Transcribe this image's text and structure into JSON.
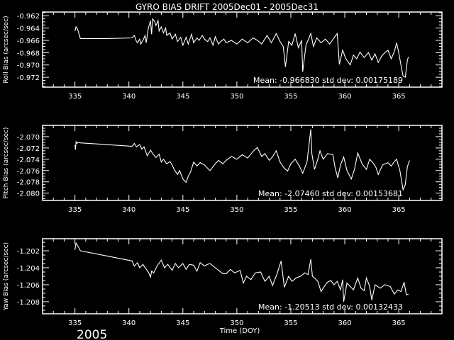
{
  "title": "GYRO BIAS DRIFT 2005Dec01 - 2005Dec31",
  "xlabel": "Time (DOY)",
  "year_label": "2005",
  "colors": {
    "background": "#000000",
    "foreground": "#ffffff"
  },
  "chart_data": [
    {
      "type": "line",
      "ylabel": "Roll Bias (arcsec/sec)",
      "stats": "Mean: -0.966830 std dev: 0.00175189",
      "xlim": [
        332,
        369
      ],
      "ylim": [
        -0.9736,
        -0.9614
      ],
      "xticks": [
        335,
        340,
        345,
        350,
        355,
        360,
        365
      ],
      "yticks": [
        -0.962,
        -0.964,
        -0.966,
        -0.968,
        -0.97,
        -0.972
      ],
      "ytick_labels": [
        "-0.962",
        "-0.964",
        "-0.966",
        "-0.968",
        "-0.970",
        "-0.972"
      ],
      "x": [
        335.0,
        335.1,
        335.2,
        335.3,
        335.5,
        338.0,
        340.3,
        340.5,
        340.7,
        340.8,
        341.0,
        341.1,
        341.3,
        341.5,
        341.6,
        341.8,
        342.0,
        342.1,
        342.2,
        342.4,
        342.5,
        342.7,
        342.8,
        343.0,
        343.2,
        343.4,
        343.5,
        343.8,
        344.0,
        344.3,
        344.5,
        344.8,
        345.0,
        345.3,
        345.5,
        345.8,
        346.0,
        346.3,
        346.5,
        346.8,
        347.0,
        347.3,
        347.5,
        347.8,
        348.0,
        348.3,
        348.5,
        348.8,
        349.0,
        349.5,
        350.0,
        350.5,
        351.0,
        351.5,
        351.9,
        352.3,
        352.8,
        353.2,
        353.65,
        354.0,
        354.3,
        354.5,
        354.8,
        355.1,
        355.4,
        355.7,
        356.0,
        356.1,
        356.4,
        356.85,
        357.1,
        357.4,
        357.8,
        358.2,
        358.6,
        359.0,
        359.3,
        359.5,
        359.8,
        360.1,
        360.5,
        360.8,
        361.1,
        361.4,
        361.8,
        362.2,
        362.5,
        362.8,
        363.1,
        363.4,
        363.7,
        364.0,
        364.3,
        364.6,
        364.8,
        365.0,
        365.2,
        365.4,
        365.6,
        365.8,
        365.9
      ],
      "y": [
        -0.9645,
        -0.9638,
        -0.964,
        -0.9645,
        -0.9657,
        -0.9657,
        -0.9656,
        -0.9652,
        -0.9662,
        -0.9664,
        -0.9658,
        -0.9666,
        -0.966,
        -0.9652,
        -0.9664,
        -0.964,
        -0.9628,
        -0.965,
        -0.9625,
        -0.963,
        -0.9636,
        -0.9628,
        -0.9645,
        -0.9638,
        -0.9648,
        -0.964,
        -0.9652,
        -0.9648,
        -0.9658,
        -0.965,
        -0.9662,
        -0.9655,
        -0.9668,
        -0.9655,
        -0.9666,
        -0.965,
        -0.9664,
        -0.9656,
        -0.966,
        -0.9652,
        -0.9658,
        -0.9662,
        -0.9656,
        -0.9668,
        -0.9654,
        -0.9666,
        -0.9662,
        -0.9658,
        -0.9664,
        -0.966,
        -0.9666,
        -0.9658,
        -0.9664,
        -0.9656,
        -0.966,
        -0.9666,
        -0.9652,
        -0.9664,
        -0.9649,
        -0.9662,
        -0.967,
        -0.9703,
        -0.9662,
        -0.9668,
        -0.9649,
        -0.9672,
        -0.966,
        -0.9711,
        -0.9668,
        -0.9649,
        -0.967,
        -0.9656,
        -0.9664,
        -0.9658,
        -0.9666,
        -0.9656,
        -0.9649,
        -0.9699,
        -0.9676,
        -0.969,
        -0.97,
        -0.9684,
        -0.969,
        -0.9679,
        -0.9688,
        -0.968,
        -0.9692,
        -0.9682,
        -0.9696,
        -0.9686,
        -0.968,
        -0.9676,
        -0.969,
        -0.9678,
        -0.9664,
        -0.968,
        -0.97,
        -0.9718,
        -0.972,
        -0.9692,
        -0.9687
      ]
    },
    {
      "type": "line",
      "ylabel": "Pitch Bias (arcsec/sec)",
      "stats": "Mean: -2.07460 std dev: 0.00153681",
      "xlim": [
        332,
        369
      ],
      "ylim": [
        -2.0813,
        -2.068
      ],
      "xticks": [
        335,
        340,
        345,
        350,
        355,
        360,
        365
      ],
      "yticks": [
        -2.07,
        -2.072,
        -2.074,
        -2.076,
        -2.078,
        -2.08
      ],
      "ytick_labels": [
        "-2.070",
        "-2.072",
        "-2.074",
        "-2.076",
        "-2.078",
        "-2.080"
      ],
      "x": [
        335.0,
        335.05,
        335.1,
        335.2,
        335.3,
        335.5,
        340.3,
        340.5,
        340.7,
        341.0,
        341.2,
        341.4,
        341.7,
        342.0,
        342.2,
        342.5,
        342.8,
        343.0,
        343.2,
        343.5,
        343.8,
        344.0,
        344.2,
        344.5,
        344.7,
        345.0,
        345.3,
        345.5,
        345.7,
        346.0,
        346.3,
        346.6,
        347.0,
        347.3,
        347.5,
        348.0,
        348.3,
        348.7,
        349.0,
        349.5,
        350.0,
        350.5,
        351.0,
        351.5,
        351.9,
        352.3,
        352.6,
        353.0,
        353.3,
        353.65,
        354.0,
        354.4,
        354.7,
        355.0,
        355.4,
        355.8,
        356.1,
        356.5,
        356.85,
        356.95,
        357.2,
        357.5,
        357.7,
        358.0,
        358.4,
        358.9,
        359.1,
        359.35,
        359.6,
        359.9,
        360.2,
        360.6,
        360.9,
        361.2,
        361.6,
        362.0,
        362.3,
        362.6,
        362.9,
        363.1,
        363.5,
        364.0,
        364.3,
        364.6,
        364.8,
        365.1,
        365.4,
        365.6,
        365.8,
        366.0
      ],
      "y": [
        -2.0715,
        -2.0723,
        -2.0709,
        -2.0712,
        -2.071,
        -2.0711,
        -2.0717,
        -2.0712,
        -2.0718,
        -2.0714,
        -2.0722,
        -2.0718,
        -2.0734,
        -2.0724,
        -2.073,
        -2.0737,
        -2.0731,
        -2.0745,
        -2.074,
        -2.0748,
        -2.0744,
        -2.075,
        -2.0758,
        -2.0767,
        -2.076,
        -2.0775,
        -2.0781,
        -2.077,
        -2.0763,
        -2.0745,
        -2.0752,
        -2.0746,
        -2.075,
        -2.0756,
        -2.076,
        -2.0748,
        -2.0742,
        -2.0748,
        -2.0742,
        -2.0735,
        -2.074,
        -2.0732,
        -2.0738,
        -2.0726,
        -2.0719,
        -2.0735,
        -2.073,
        -2.0742,
        -2.0736,
        -2.0725,
        -2.0745,
        -2.0756,
        -2.0761,
        -2.0748,
        -2.074,
        -2.0752,
        -2.0765,
        -2.0745,
        -2.0687,
        -2.073,
        -2.0758,
        -2.074,
        -2.0725,
        -2.074,
        -2.073,
        -2.0732,
        -2.0755,
        -2.0773,
        -2.075,
        -2.0736,
        -2.076,
        -2.0775,
        -2.0758,
        -2.0729,
        -2.0748,
        -2.0758,
        -2.074,
        -2.0746,
        -2.0755,
        -2.0767,
        -2.075,
        -2.0746,
        -2.0752,
        -2.0744,
        -2.074,
        -2.076,
        -2.0794,
        -2.0785,
        -2.0753,
        -2.0742
      ]
    },
    {
      "type": "line",
      "ylabel": "Yaw Bias (arcsec/sec)",
      "stats": "Mean: -1.20513 std dev: 0.00132433",
      "xlim": [
        332,
        369
      ],
      "ylim": [
        -1.20942,
        -1.20058
      ],
      "xticks": [
        335,
        340,
        345,
        350,
        355,
        360,
        365
      ],
      "yticks": [
        -1.202,
        -1.204,
        -1.206,
        -1.208
      ],
      "ytick_labels": [
        "-1.202",
        "-1.204",
        "-1.206",
        "-1.208"
      ],
      "x": [
        335.0,
        335.1,
        335.3,
        335.5,
        340.3,
        340.5,
        340.8,
        341.0,
        341.3,
        341.5,
        341.8,
        342.0,
        342.1,
        342.3,
        342.6,
        343.0,
        343.3,
        343.6,
        344.0,
        344.3,
        344.6,
        345.0,
        345.3,
        345.6,
        346.0,
        346.3,
        346.6,
        347.0,
        347.3,
        347.5,
        348.0,
        348.4,
        348.7,
        349.0,
        349.4,
        349.8,
        350.3,
        350.6,
        350.9,
        351.3,
        351.7,
        352.2,
        352.6,
        353.0,
        353.3,
        353.7,
        354.1,
        354.4,
        354.8,
        355.1,
        355.5,
        355.9,
        356.3,
        356.6,
        356.85,
        357.0,
        357.2,
        357.5,
        357.8,
        358.1,
        358.4,
        358.7,
        359.0,
        359.3,
        359.6,
        359.8,
        359.9,
        360.2,
        360.5,
        360.8,
        361.2,
        361.5,
        361.8,
        362.0,
        362.3,
        362.5,
        362.8,
        363.3,
        363.7,
        364.2,
        364.6,
        364.9,
        365.2,
        365.5,
        365.7,
        365.9
      ],
      "y": [
        -1.2019,
        -1.2011,
        -1.2015,
        -1.202,
        -1.2032,
        -1.2038,
        -1.2034,
        -1.204,
        -1.2036,
        -1.204,
        -1.2045,
        -1.2051,
        -1.2044,
        -1.2046,
        -1.2038,
        -1.2031,
        -1.204,
        -1.2036,
        -1.2043,
        -1.2035,
        -1.204,
        -1.2035,
        -1.2042,
        -1.2036,
        -1.2037,
        -1.2044,
        -1.2034,
        -1.2038,
        -1.2036,
        -1.2035,
        -1.204,
        -1.2044,
        -1.2047,
        -1.2047,
        -1.2042,
        -1.2046,
        -1.2043,
        -1.2058,
        -1.205,
        -1.2054,
        -1.2046,
        -1.2045,
        -1.2056,
        -1.205,
        -1.2061,
        -1.2048,
        -1.2032,
        -1.2063,
        -1.205,
        -1.2056,
        -1.2052,
        -1.205,
        -1.2046,
        -1.2048,
        -1.203,
        -1.205,
        -1.2052,
        -1.2056,
        -1.2068,
        -1.2062,
        -1.2057,
        -1.2055,
        -1.206,
        -1.2056,
        -1.2066,
        -1.2054,
        -1.208,
        -1.2058,
        -1.2062,
        -1.2066,
        -1.2052,
        -1.2064,
        -1.2067,
        -1.2052,
        -1.2062,
        -1.2078,
        -1.206,
        -1.2064,
        -1.206,
        -1.2062,
        -1.2071,
        -1.2066,
        -1.2068,
        -1.2057,
        -1.2072,
        -1.2071
      ]
    }
  ]
}
